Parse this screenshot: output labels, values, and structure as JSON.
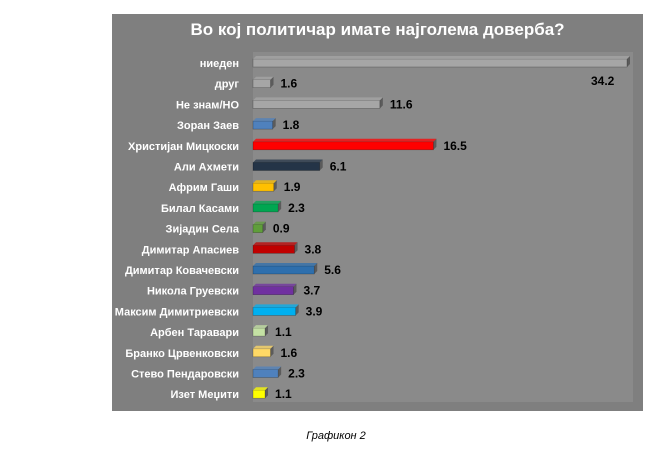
{
  "chart_data": {
    "type": "bar",
    "orientation": "horizontal",
    "title": "Во кој политичар имате најголема доверба?",
    "categories": [
      "ниеден",
      "друг",
      "Не знам/НО",
      "Зоран Заев",
      "Христијан Мицкоски",
      "Али Ахмети",
      "Африм Гаши",
      "Билал Касами",
      "Зијадин Села",
      "Димитар Апасиев",
      "Димитар Ковачевски",
      "Никола Груевски",
      "Максим Димитриевски",
      "Арбен Таравари",
      "Бранко Црвенковски",
      "Стево Пендаровски",
      "Изет Меџити"
    ],
    "values": [
      34.2,
      1.6,
      11.6,
      1.8,
      16.5,
      6.1,
      1.9,
      2.3,
      0.9,
      3.8,
      5.6,
      3.7,
      3.9,
      1.1,
      1.6,
      2.3,
      1.1
    ],
    "value_labels": [
      "34.2",
      "1.6",
      "11.6",
      "1.8",
      "16.5",
      "6.1",
      "1.9",
      "2.3",
      "0.9",
      "3.8",
      "5.6",
      "3.7",
      "3.9",
      "1.1",
      "1.6",
      "2.3",
      "1.1"
    ],
    "colors": [
      "#a6a6a6",
      "#a6a6a6",
      "#a6a6a6",
      "#4f81bd",
      "#ff0000",
      "#243447",
      "#ffc000",
      "#00a651",
      "#5f9e3a",
      "#c00000",
      "#2e6fad",
      "#7030a0",
      "#00b0f0",
      "#c4e1a4",
      "#ffd966",
      "#4f81bd",
      "#ffff00"
    ],
    "xlim": [
      0,
      34.2
    ],
    "grid": false,
    "legend": "none"
  },
  "caption": "Графикон 2"
}
